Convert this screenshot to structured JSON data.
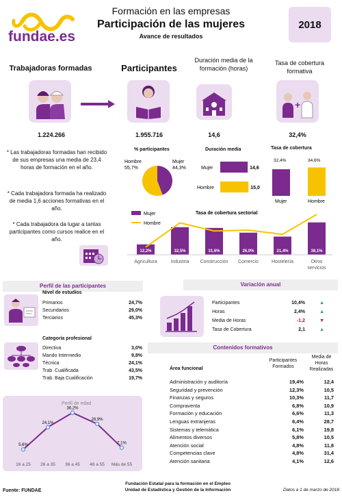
{
  "header": {
    "brand": "fundae.es",
    "line1": "Formación en las empresas",
    "line2": "Participación de las mujeres",
    "line3": "Avance de resultados",
    "year": "2018"
  },
  "stats": [
    {
      "title": "Trabajadoras formadas",
      "value": "1.224.266"
    },
    {
      "title": "Participantes",
      "value": "1.955.716"
    },
    {
      "title": "Duración media de la formación (horas)",
      "value": "14,6"
    },
    {
      "title": "Tasa de cobertura formativa",
      "value": "32,4%"
    }
  ],
  "notes": [
    "* Las trabajadoras formadas han recibido de sus empresas una media de 23,4 horas de formación en el año.",
    "* Cada trabajadora formada ha realizado de media 1,6  acciones formativas en el año.",
    "* Cada trabajadora da lugar a tantas participantes como cursos realice en el año."
  ],
  "pie": {
    "title": "% participantes",
    "hombre_label": "Hombre",
    "hombre_value": "55,7%",
    "mujer_label": "Mujer",
    "mujer_value": "44,3%"
  },
  "duracion": {
    "title": "Duración media",
    "mujer_label": "Mujer",
    "mujer_value": "14,6",
    "hombre_label": "Hombre",
    "hombre_value": "15,0"
  },
  "cobertura": {
    "title": "Tasa de cobertura",
    "mujer_label": "Mujer",
    "mujer_value": "32,4%",
    "hombre_label": "Hombre",
    "hombre_value": "34,6%"
  },
  "sectorial": {
    "title": "Tasa de cobertura sectorial",
    "legend_mujer": "Mujer",
    "legend_hombre": "Hombre"
  },
  "perfil": {
    "title": "Perfil de las participantes",
    "estudios_title": "Nivel de estudios",
    "estudios": [
      {
        "label": "Primarios",
        "value": "24,7%"
      },
      {
        "label": "Secundarios",
        "value": "29,0%"
      },
      {
        "label": "Terciarios",
        "value": "45,3%"
      }
    ],
    "categoria_title": "Categoría profesional",
    "categoria": [
      {
        "label": "Directiva",
        "value": "3,0%"
      },
      {
        "label": "Mando Intermedio",
        "value": "9,8%"
      },
      {
        "label": "Técnica",
        "value": "24,1%"
      },
      {
        "label": "Trab. Cualificada",
        "value": "43,5%"
      },
      {
        "label": "Trab. Baja Cualificación",
        "value": "19,7%"
      }
    ],
    "edad_title": "Perfil de edad"
  },
  "variacion": {
    "title": "Variación anual",
    "rows": [
      {
        "label": "Participantes",
        "value": "10,4%",
        "dir": "up"
      },
      {
        "label": "Horas",
        "value": "2,4%",
        "dir": "up"
      },
      {
        "label": "Media de Horas",
        "value": "-1,2",
        "dir": "down"
      },
      {
        "label": "Tasa de Cobertura",
        "value": "2,1",
        "dir": "up"
      }
    ]
  },
  "contenidos": {
    "title": "Contenidos formativos",
    "col_area": "Área funcional",
    "col_part": "Participantes Formados",
    "col_horas": "Media de Horas Realizadas",
    "rows": [
      {
        "area": "Administración y auditoría",
        "part": "19,4%",
        "horas": "12,4"
      },
      {
        "area": "Seguridad y prevención",
        "part": "12,3%",
        "horas": "10,5"
      },
      {
        "area": "Finanzas y seguros",
        "part": "10,3%",
        "horas": "11,7"
      },
      {
        "area": "Compraventa",
        "part": "6,8%",
        "horas": "10,9"
      },
      {
        "area": "Formación y educación",
        "part": "6,6%",
        "horas": "11,3"
      },
      {
        "area": "Lenguas extranjeras",
        "part": "6,4%",
        "horas": "28,7"
      },
      {
        "area": "Sistemas y telemática",
        "part": "6,1%",
        "horas": "19,8"
      },
      {
        "area": "Alimentos diversos",
        "part": "5,8%",
        "horas": "10,5"
      },
      {
        "area": "Atención social",
        "part": "4,8%",
        "horas": "11,8"
      },
      {
        "area": "Competencias clave",
        "part": "4,8%",
        "horas": "31,4"
      },
      {
        "area": "Atención sanitaria",
        "part": "4,1%",
        "horas": "12,6"
      }
    ]
  },
  "footer": {
    "source": "Fuente: FUNDAE",
    "org1": "Fundación Estatal para la formación en el Empleo",
    "org2": "Unidad de Estadística y Gestión de la Información",
    "date": "Datos a 1 de marzo de 2018"
  },
  "colors": {
    "purple": "#7b2a8e",
    "yellow": "#f7c300",
    "tile": "#ecdcf0"
  },
  "chart_data": [
    {
      "type": "pie",
      "title": "% participantes",
      "categories": [
        "Mujer",
        "Hombre"
      ],
      "values": [
        44.3,
        55.7
      ]
    },
    {
      "type": "bar",
      "title": "Duración media",
      "categories": [
        "Mujer",
        "Hombre"
      ],
      "values": [
        14.6,
        15.0
      ]
    },
    {
      "type": "bar",
      "title": "Tasa de cobertura",
      "categories": [
        "Mujer",
        "Hombre"
      ],
      "values": [
        32.4,
        34.6
      ]
    },
    {
      "type": "bar",
      "title": "Tasa de cobertura sectorial",
      "categories": [
        "Agricultura",
        "Industria",
        "Construcción",
        "Comercio",
        "Hostelería",
        "Otros servicios"
      ],
      "series": [
        {
          "name": "Mujer",
          "values": [
            12.2,
            32.5,
            31.6,
            26.0,
            21.4,
            38.1
          ],
          "labels": [
            "12,2%",
            "32,5%",
            "31,6%",
            "26,0%",
            "21,4%",
            "38,1%"
          ]
        },
        {
          "name": "Hombre",
          "values": [
            9.0,
            37.5,
            28.0,
            29.0,
            24.0,
            47.5
          ]
        }
      ]
    },
    {
      "type": "line",
      "title": "Perfil de edad",
      "categories": [
        "16 a 25",
        "26 a 35",
        "36 a 45",
        "46 a 55",
        "Más de 55"
      ],
      "values": [
        5.6,
        24.1,
        36.2,
        26.9,
        7.1
      ],
      "labels": [
        "5,6%",
        "24,1%",
        "36,2%",
        "26,9%",
        "7,1%"
      ]
    }
  ]
}
